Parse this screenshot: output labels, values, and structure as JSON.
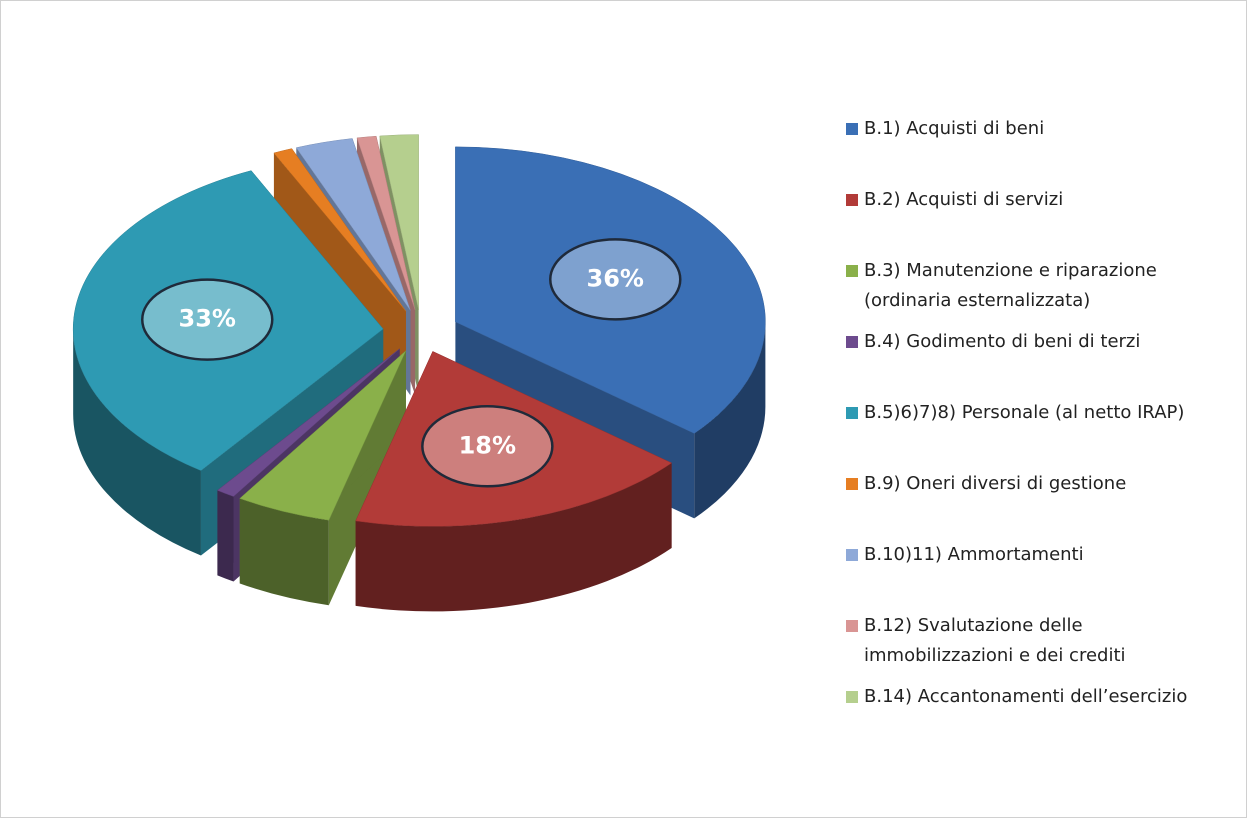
{
  "chart_data": {
    "type": "pie",
    "categories": [
      "B.1) Acquisti di beni",
      "B.2) Acquisti di servizi",
      "B.3) Manutenzione e riparazione (ordinaria esternalizzata)",
      "B.4) Godimento di beni di terzi",
      "B.5)6)7)8) Personale (al netto IRAP)",
      "B.9) Oneri diversi di gestione",
      "B.10)11) Ammortamenti",
      "B.12) Svalutazione delle immobilizzazioni e dei crediti",
      "B.14) Accantonamenti dell’esercizio"
    ],
    "values": [
      36,
      18,
      5,
      1,
      33,
      1,
      3,
      1,
      2
    ],
    "value_labels": [
      "36%",
      "18%",
      null,
      null,
      "33%",
      null,
      null,
      null,
      null
    ],
    "colors": [
      "#3a6fb5",
      "#b23b38",
      "#8ab04a",
      "#6d4b8e",
      "#2e9ab3",
      "#e67e22",
      "#8ea9d8",
      "#d99594",
      "#b5cf8e"
    ],
    "legend": "right"
  }
}
